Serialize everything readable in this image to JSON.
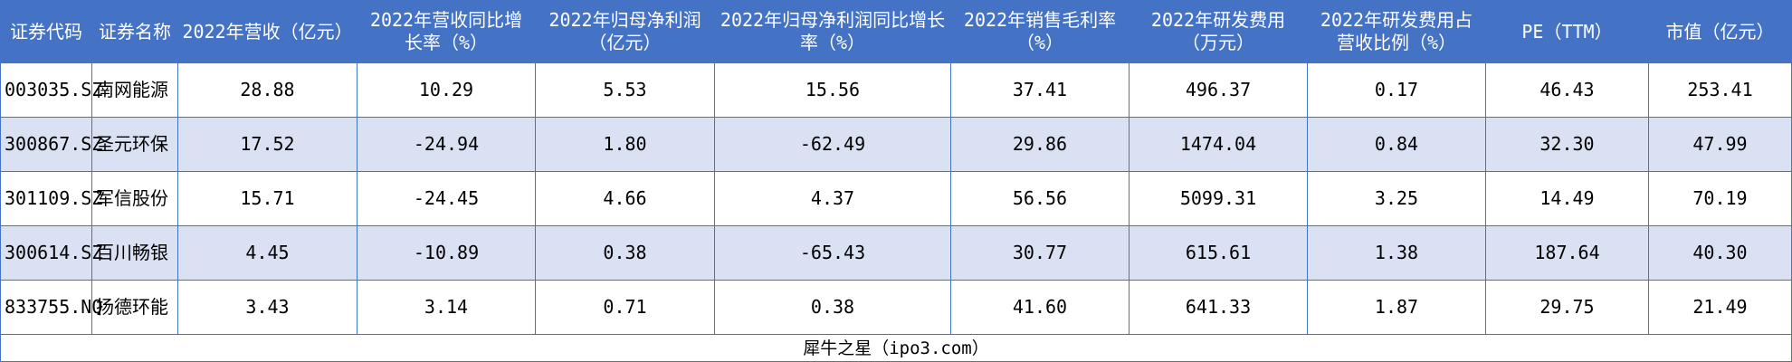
{
  "table": {
    "headers": [
      "证券代码",
      "证券名称",
      "2022年营收（亿元）",
      "2022年营收同比增长率（%）",
      "2022年归母净利润（亿元）",
      "2022年归母净利润同比增长率（%）",
      "2022年销售毛利率（%）",
      "2022年研发费用（万元）",
      "2022年研发费用占营收比例（%）",
      "PE（TTM）",
      "市值（亿元）"
    ],
    "rows": [
      [
        "003035.SZ",
        "南网能源",
        "28.88",
        "10.29",
        "5.53",
        "15.56",
        "37.41",
        "496.37",
        "0.17",
        "46.43",
        "253.41"
      ],
      [
        "300867.SZ",
        "圣元环保",
        "17.52",
        "-24.94",
        "1.80",
        "-62.49",
        "29.86",
        "1474.04",
        "0.84",
        "32.30",
        "47.99"
      ],
      [
        "301109.SZ",
        "军信股份",
        "15.71",
        "-24.45",
        "4.66",
        "4.37",
        "56.56",
        "5099.31",
        "3.25",
        "14.49",
        "70.19"
      ],
      [
        "300614.SZ",
        "百川畅银",
        "4.45",
        "-10.89",
        "0.38",
        "-65.43",
        "30.77",
        "615.61",
        "1.38",
        "187.64",
        "40.30"
      ],
      [
        "833755.NQ",
        "扬德环能",
        "3.43",
        "3.14",
        "0.71",
        "0.38",
        "41.60",
        "641.33",
        "1.87",
        "29.75",
        "21.49"
      ]
    ],
    "footer": "犀牛之星（ipo3.com）"
  }
}
